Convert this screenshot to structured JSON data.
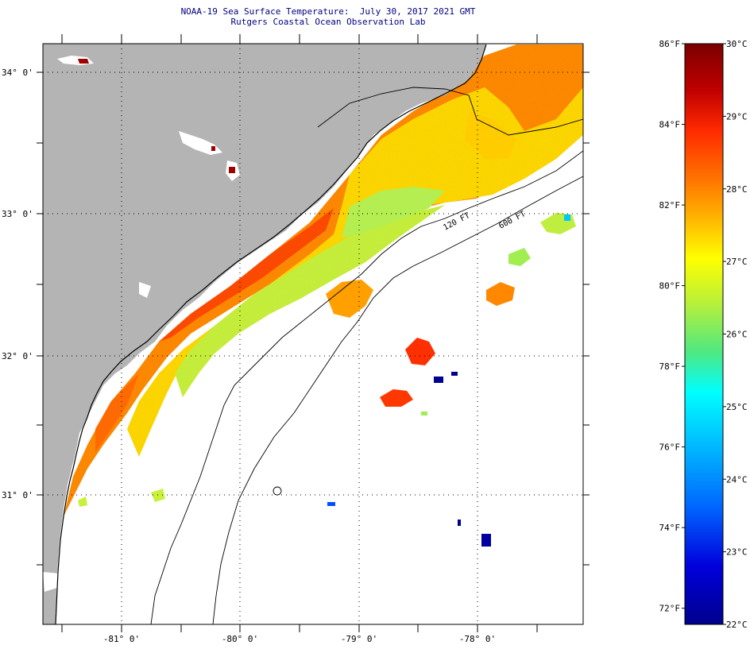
{
  "title": {
    "line1": "NOAA-19 Sea Surface Temperature:  July 30, 2017 2021 GMT",
    "line2": "Rutgers Coastal Ocean Observation Lab"
  },
  "map": {
    "lat_labels": [
      "34° 0'",
      "33° 0'",
      "32° 0'",
      "31° 0'"
    ],
    "lon_labels": [
      "-81° 0'",
      "-80° 0'",
      "-79° 0'",
      "-78° 0'"
    ],
    "lat_range": [
      30.2,
      34.2
    ],
    "lon_range": [
      -81.65,
      -77.1
    ],
    "contour_labels": [
      "120 FT",
      "600 FT"
    ],
    "land_color": "#b4b4b4",
    "ocean_color": "#ffffff"
  },
  "colorbar": {
    "celsius_labels": [
      "30°C",
      "29°C",
      "28°C",
      "27°C",
      "26°C",
      "25°C",
      "24°C",
      "23°C",
      "22°C"
    ],
    "fahrenheit_labels": [
      "86°F",
      "84°F",
      "82°F",
      "80°F",
      "78°F",
      "76°F",
      "74°F",
      "72°F"
    ],
    "min_c": 22,
    "max_c": 30,
    "stops": [
      "#7a0000",
      "#d00000",
      "#ff2a00",
      "#ff7a00",
      "#ffb400",
      "#ffff00",
      "#b4f03c",
      "#50e880",
      "#00ffff",
      "#00b4ff",
      "#0064ff",
      "#0000dc",
      "#00008c"
    ]
  }
}
